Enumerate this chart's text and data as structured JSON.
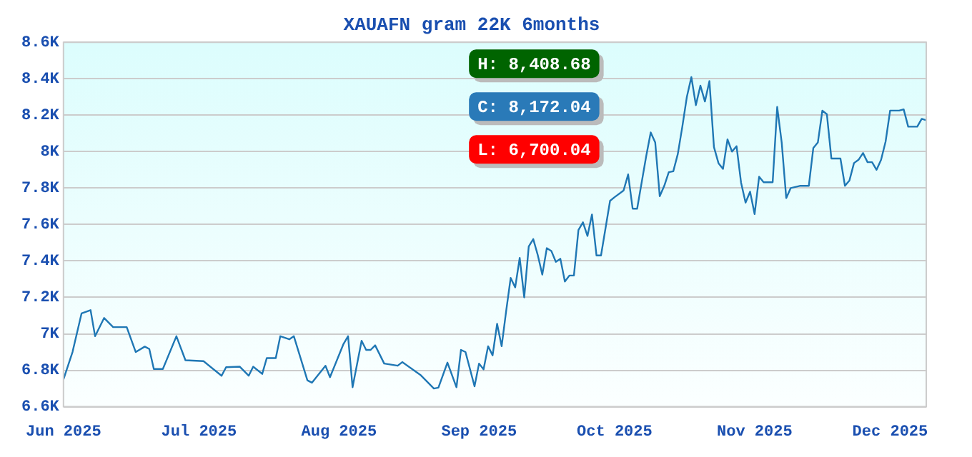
{
  "chart_data": {
    "type": "line",
    "title": "XAUAFN gram 22K 6months",
    "x": [
      "2025-06-01",
      "2025-06-03",
      "2025-06-05",
      "2025-06-07",
      "2025-06-08",
      "2025-06-10",
      "2025-06-12",
      "2025-06-15",
      "2025-06-17",
      "2025-06-19",
      "2025-06-20",
      "2025-06-21",
      "2025-06-23",
      "2025-06-26",
      "2025-06-28",
      "2025-07-02",
      "2025-07-06",
      "2025-07-07",
      "2025-07-10",
      "2025-07-12",
      "2025-07-13",
      "2025-07-15",
      "2025-07-16",
      "2025-07-18",
      "2025-07-19",
      "2025-07-21",
      "2025-07-22",
      "2025-07-25",
      "2025-07-26",
      "2025-07-29",
      "2025-07-30",
      "2025-08-02",
      "2025-08-03",
      "2025-08-04",
      "2025-08-06",
      "2025-08-07",
      "2025-08-08",
      "2025-08-09",
      "2025-08-11",
      "2025-08-14",
      "2025-08-15",
      "2025-08-19",
      "2025-08-22",
      "2025-08-23",
      "2025-08-25",
      "2025-08-27",
      "2025-08-28",
      "2025-08-29",
      "2025-08-31",
      "2025-09-01",
      "2025-09-02",
      "2025-09-03",
      "2025-09-04",
      "2025-09-05",
      "2025-09-06",
      "2025-09-07",
      "2025-09-08",
      "2025-09-09",
      "2025-09-10",
      "2025-09-11",
      "2025-09-12",
      "2025-09-13",
      "2025-09-14",
      "2025-09-15",
      "2025-09-16",
      "2025-09-17",
      "2025-09-18",
      "2025-09-19",
      "2025-09-20",
      "2025-09-21",
      "2025-09-22",
      "2025-09-23",
      "2025-09-24",
      "2025-09-25",
      "2025-09-26",
      "2025-09-27",
      "2025-09-28",
      "2025-09-30",
      "2025-10-01",
      "2025-10-03",
      "2025-10-04",
      "2025-10-05",
      "2025-10-06",
      "2025-10-08",
      "2025-10-09",
      "2025-10-10",
      "2025-10-11",
      "2025-10-12",
      "2025-10-13",
      "2025-10-14",
      "2025-10-15",
      "2025-10-16",
      "2025-10-17",
      "2025-10-18",
      "2025-10-19",
      "2025-10-20",
      "2025-10-21",
      "2025-10-22",
      "2025-10-23",
      "2025-10-24",
      "2025-10-25",
      "2025-10-26",
      "2025-10-27",
      "2025-10-28",
      "2025-10-29",
      "2025-10-30",
      "2025-10-31",
      "2025-11-01",
      "2025-11-02",
      "2025-11-03",
      "2025-11-05",
      "2025-11-06",
      "2025-11-07",
      "2025-11-08",
      "2025-11-09",
      "2025-11-11",
      "2025-11-13",
      "2025-11-14",
      "2025-11-15",
      "2025-11-16",
      "2025-11-17",
      "2025-11-18",
      "2025-11-20",
      "2025-11-21",
      "2025-11-22",
      "2025-11-23",
      "2025-11-24",
      "2025-11-25",
      "2025-11-26",
      "2025-11-27",
      "2025-11-28",
      "2025-11-29",
      "2025-11-30",
      "2025-12-01",
      "2025-12-03",
      "2025-12-04",
      "2025-12-05",
      "2025-12-07",
      "2025-12-08",
      "2025-12-09"
    ],
    "series": [
      {
        "color": "#1f77b4",
        "values": [
          6750,
          6900,
          7112,
          7130,
          6987,
          7087,
          7037,
          7037,
          6900,
          6930,
          6917,
          6807,
          6807,
          6987,
          6855,
          6850,
          6770,
          6817,
          6820,
          6770,
          6820,
          6780,
          6867,
          6867,
          6987,
          6970,
          6987,
          6745,
          6732,
          6825,
          6762,
          6945,
          6987,
          6707,
          6962,
          6912,
          6912,
          6937,
          6837,
          6825,
          6845,
          6775,
          6700,
          6705,
          6842,
          6707,
          6912,
          6900,
          6712,
          6837,
          6805,
          6932,
          6882,
          7055,
          6932,
          7125,
          7307,
          7255,
          7417,
          7200,
          7480,
          7520,
          7432,
          7325,
          7470,
          7455,
          7395,
          7412,
          7287,
          7320,
          7320,
          7570,
          7612,
          7537,
          7655,
          7430,
          7430,
          7730,
          7750,
          7787,
          7875,
          7687,
          7687,
          7975,
          8105,
          8050,
          7755,
          7812,
          7887,
          7892,
          7987,
          8137,
          8300,
          8409,
          8255,
          8362,
          8275,
          8387,
          8025,
          7937,
          7905,
          8067,
          8000,
          8030,
          7830,
          7720,
          7780,
          7657,
          7862,
          7832,
          7832,
          8245,
          8050,
          7745,
          7800,
          7812,
          7812,
          8020,
          8050,
          8225,
          8205,
          7962,
          7962,
          7812,
          7842,
          7937,
          7955,
          7992,
          7942,
          7942,
          7900,
          7955,
          8055,
          8225,
          8225,
          8232,
          8137,
          8137,
          8180,
          8172
        ]
      }
    ],
    "xlim": [
      "2025-06-01",
      "2025-12-09"
    ],
    "xticks": [
      {
        "value": "2025-06-01",
        "label": "Jun 2025"
      },
      {
        "value": "2025-07-01",
        "label": "Jul 2025"
      },
      {
        "value": "2025-08-01",
        "label": "Aug 2025"
      },
      {
        "value": "2025-09-01",
        "label": "Sep 2025"
      },
      {
        "value": "2025-10-01",
        "label": "Oct 2025"
      },
      {
        "value": "2025-11-01",
        "label": "Nov 2025"
      },
      {
        "value": "2025-12-01",
        "label": "Dec 2025"
      }
    ],
    "ylim": [
      6600,
      8600
    ],
    "yticks": [
      {
        "value": 6600,
        "label": "6.6K"
      },
      {
        "value": 6800,
        "label": "6.8K"
      },
      {
        "value": 7000,
        "label": "7K"
      },
      {
        "value": 7200,
        "label": "7.2K"
      },
      {
        "value": 7400,
        "label": "7.4K"
      },
      {
        "value": 7600,
        "label": "7.6K"
      },
      {
        "value": 7800,
        "label": "7.8K"
      },
      {
        "value": 8000,
        "label": "8K"
      },
      {
        "value": 8200,
        "label": "8.2K"
      },
      {
        "value": 8400,
        "label": "8.4K"
      },
      {
        "value": 8600,
        "label": "8.6K"
      }
    ],
    "grid": "y",
    "legend": false,
    "marker": "none",
    "line_style": "solid",
    "annotations": [
      "H: 8,408.68",
      "C: 8,172.04",
      "L: 6,700.04"
    ]
  }
}
